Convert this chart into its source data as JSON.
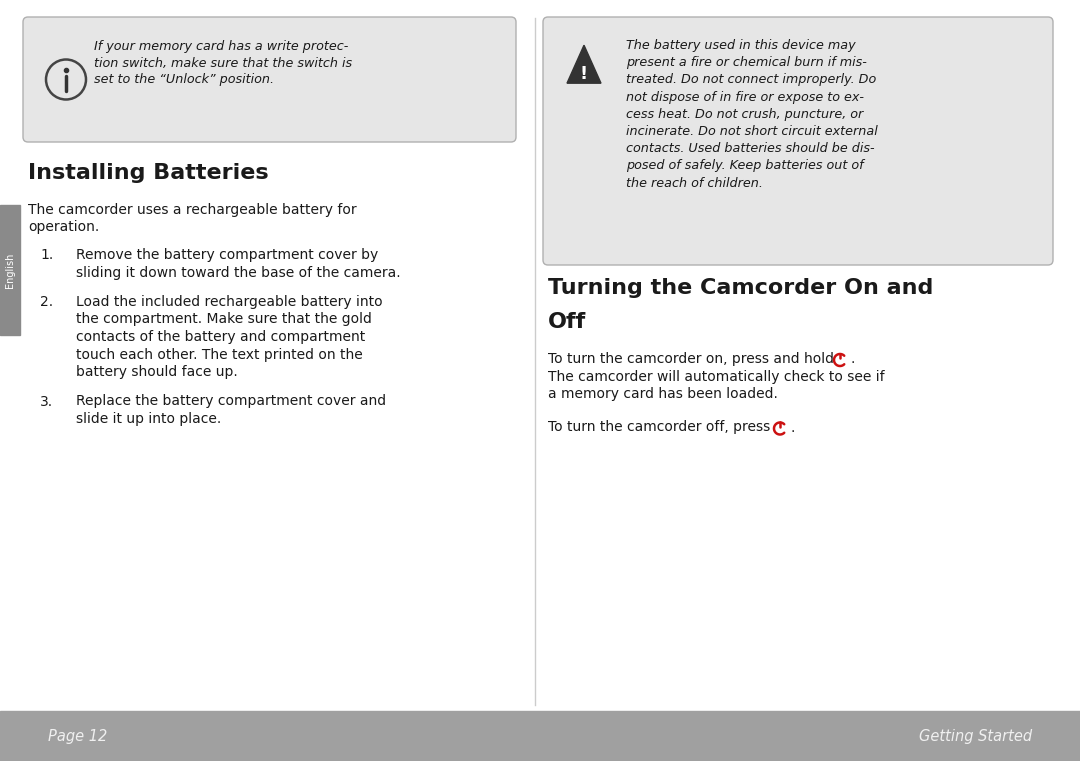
{
  "bg_color": "#ffffff",
  "footer_color": "#a0a0a0",
  "box_bg": "#e6e6e6",
  "box_border": "#b0b0b0",
  "text_color": "#1a1a1a",
  "footer_text_color": "#f0f0f0",
  "sidebar_color": "#8a8a8a",
  "sidebar_text": "English",
  "left_info_box_text_lines": [
    "If your memory card has a write protec-",
    "tion switch, make sure that the switch is",
    "set to the “Unlock” position."
  ],
  "right_warn_box_text_lines": [
    "The battery used in this device may",
    "present a fire or chemical burn if mis-",
    "treated. Do not connect improperly. Do",
    "not dispose of in fire or expose to ex-",
    "cess heat. Do not crush, puncture, or",
    "incinerate. Do not short circuit external",
    "contacts. Used batteries should be dis-",
    "posed of safely. Keep batteries out of",
    "the reach of children."
  ],
  "section1_title": "Installing Batteries",
  "section1_intro_lines": [
    "The camcorder uses a rechargeable battery for",
    "operation."
  ],
  "section1_items": [
    [
      "Remove the battery compartment cover by",
      "sliding it down toward the base of the camera."
    ],
    [
      "Load the included rechargeable battery into",
      "the compartment. Make sure that the gold",
      "contacts of the battery and compartment",
      "touch each other. The text printed on the",
      "battery should face up."
    ],
    [
      "Replace the battery compartment cover and",
      "slide it up into place."
    ]
  ],
  "section2_title_line1": "Turning the Camcorder On and",
  "section2_title_line2": "Off",
  "section2_text1a": "To turn the camcorder on, press and hold ",
  "section2_text2_lines": [
    "The camcorder will automatically check to see if",
    "a memory card has been loaded."
  ],
  "section2_text3a": "To turn the camcorder off, press ",
  "footer_left": "Page 12",
  "footer_right": "Getting Started",
  "power_icon_color": "#cc1111",
  "divider_color": "#cccccc"
}
